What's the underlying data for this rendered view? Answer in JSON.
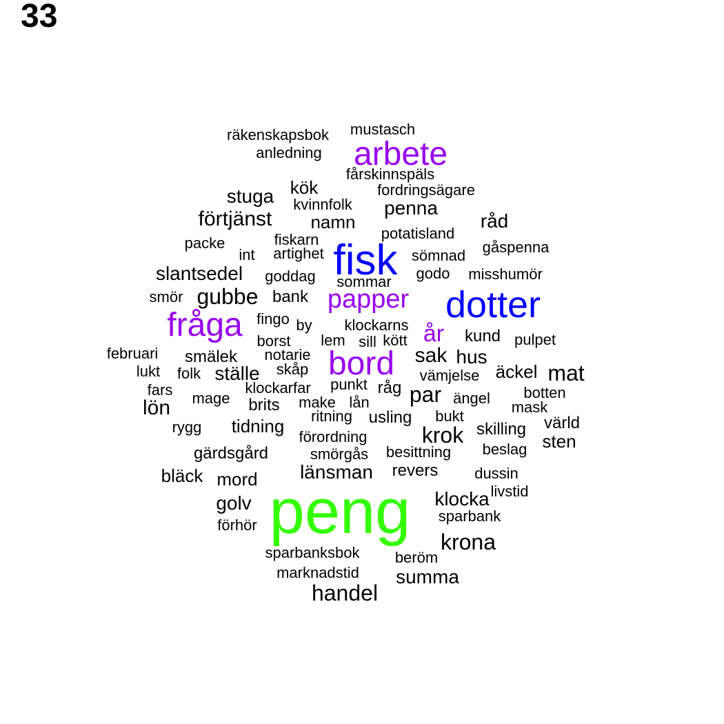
{
  "page_number": "33",
  "colors": {
    "tier1": "#33ff00",
    "tier2": "#0000ff",
    "tier3": "#9900ee",
    "tier4": "#000000"
  },
  "words": [
    {
      "text": "peng",
      "tier": 1
    },
    {
      "text": "dotter",
      "tier": 2
    },
    {
      "text": "fisk",
      "tier": 2
    },
    {
      "text": "arbete",
      "tier": 3
    },
    {
      "text": "fråga",
      "tier": 3
    },
    {
      "text": "bord",
      "tier": 3
    },
    {
      "text": "papper",
      "tier": 3
    },
    {
      "text": "år",
      "tier": 3
    },
    {
      "text": "mustasch",
      "tier": 4
    },
    {
      "text": "räkenskapsbok",
      "tier": 4
    },
    {
      "text": "anledning",
      "tier": 4
    },
    {
      "text": "fårskinnspäls",
      "tier": 4
    },
    {
      "text": "fordringsägare",
      "tier": 4
    },
    {
      "text": "kök",
      "tier": 4
    },
    {
      "text": "stuga",
      "tier": 4
    },
    {
      "text": "kvinnfolk",
      "tier": 4
    },
    {
      "text": "penna",
      "tier": 4
    },
    {
      "text": "förtjänst",
      "tier": 4
    },
    {
      "text": "namn",
      "tier": 4
    },
    {
      "text": "råd",
      "tier": 4
    },
    {
      "text": "potatisland",
      "tier": 4
    },
    {
      "text": "packe",
      "tier": 4
    },
    {
      "text": "fiskarn",
      "tier": 4
    },
    {
      "text": "gåspenna",
      "tier": 4
    },
    {
      "text": "int",
      "tier": 4
    },
    {
      "text": "artighet",
      "tier": 4
    },
    {
      "text": "sömnad",
      "tier": 4
    },
    {
      "text": "slantsedel",
      "tier": 4
    },
    {
      "text": "goddag",
      "tier": 4
    },
    {
      "text": "godo",
      "tier": 4
    },
    {
      "text": "misshumör",
      "tier": 4
    },
    {
      "text": "sommar",
      "tier": 4
    },
    {
      "text": "smör",
      "tier": 4
    },
    {
      "text": "gubbe",
      "tier": 4
    },
    {
      "text": "bank",
      "tier": 4
    },
    {
      "text": "fingo",
      "tier": 4
    },
    {
      "text": "by",
      "tier": 4
    },
    {
      "text": "klockarns",
      "tier": 4
    },
    {
      "text": "kund",
      "tier": 4
    },
    {
      "text": "pulpet",
      "tier": 4
    },
    {
      "text": "borst",
      "tier": 4
    },
    {
      "text": "lem",
      "tier": 4
    },
    {
      "text": "sill",
      "tier": 4
    },
    {
      "text": "kött",
      "tier": 4
    },
    {
      "text": "februari",
      "tier": 4
    },
    {
      "text": "smälek",
      "tier": 4
    },
    {
      "text": "notarie",
      "tier": 4
    },
    {
      "text": "sak",
      "tier": 4
    },
    {
      "text": "hus",
      "tier": 4
    },
    {
      "text": "lukt",
      "tier": 4
    },
    {
      "text": "folk",
      "tier": 4
    },
    {
      "text": "ställe",
      "tier": 4
    },
    {
      "text": "skåp",
      "tier": 4
    },
    {
      "text": "vämjelse",
      "tier": 4
    },
    {
      "text": "äckel",
      "tier": 4
    },
    {
      "text": "mat",
      "tier": 4
    },
    {
      "text": "fars",
      "tier": 4
    },
    {
      "text": "klockarfar",
      "tier": 4
    },
    {
      "text": "punkt",
      "tier": 4
    },
    {
      "text": "råg",
      "tier": 4
    },
    {
      "text": "par",
      "tier": 4
    },
    {
      "text": "lön",
      "tier": 4
    },
    {
      "text": "mage",
      "tier": 4
    },
    {
      "text": "brits",
      "tier": 4
    },
    {
      "text": "make",
      "tier": 4
    },
    {
      "text": "lån",
      "tier": 4
    },
    {
      "text": "ängel",
      "tier": 4
    },
    {
      "text": "botten",
      "tier": 4
    },
    {
      "text": "mask",
      "tier": 4
    },
    {
      "text": "ritning",
      "tier": 4
    },
    {
      "text": "usling",
      "tier": 4
    },
    {
      "text": "bukt",
      "tier": 4
    },
    {
      "text": "värld",
      "tier": 4
    },
    {
      "text": "rygg",
      "tier": 4
    },
    {
      "text": "tidning",
      "tier": 4
    },
    {
      "text": "förordning",
      "tier": 4
    },
    {
      "text": "krok",
      "tier": 4
    },
    {
      "text": "skilling",
      "tier": 4
    },
    {
      "text": "sten",
      "tier": 4
    },
    {
      "text": "gärdsgård",
      "tier": 4
    },
    {
      "text": "smörgås",
      "tier": 4
    },
    {
      "text": "besittning",
      "tier": 4
    },
    {
      "text": "beslag",
      "tier": 4
    },
    {
      "text": "bläck",
      "tier": 4
    },
    {
      "text": "länsman",
      "tier": 4
    },
    {
      "text": "revers",
      "tier": 4
    },
    {
      "text": "dussin",
      "tier": 4
    },
    {
      "text": "mord",
      "tier": 4
    },
    {
      "text": "livstid",
      "tier": 4
    },
    {
      "text": "golv",
      "tier": 4
    },
    {
      "text": "klocka",
      "tier": 4
    },
    {
      "text": "förhör",
      "tier": 4
    },
    {
      "text": "sparbank",
      "tier": 4
    },
    {
      "text": "krona",
      "tier": 4
    },
    {
      "text": "sparbanksbok",
      "tier": 4
    },
    {
      "text": "beröm",
      "tier": 4
    },
    {
      "text": "marknadstid",
      "tier": 4
    },
    {
      "text": "summa",
      "tier": 4
    },
    {
      "text": "handel",
      "tier": 4
    }
  ]
}
